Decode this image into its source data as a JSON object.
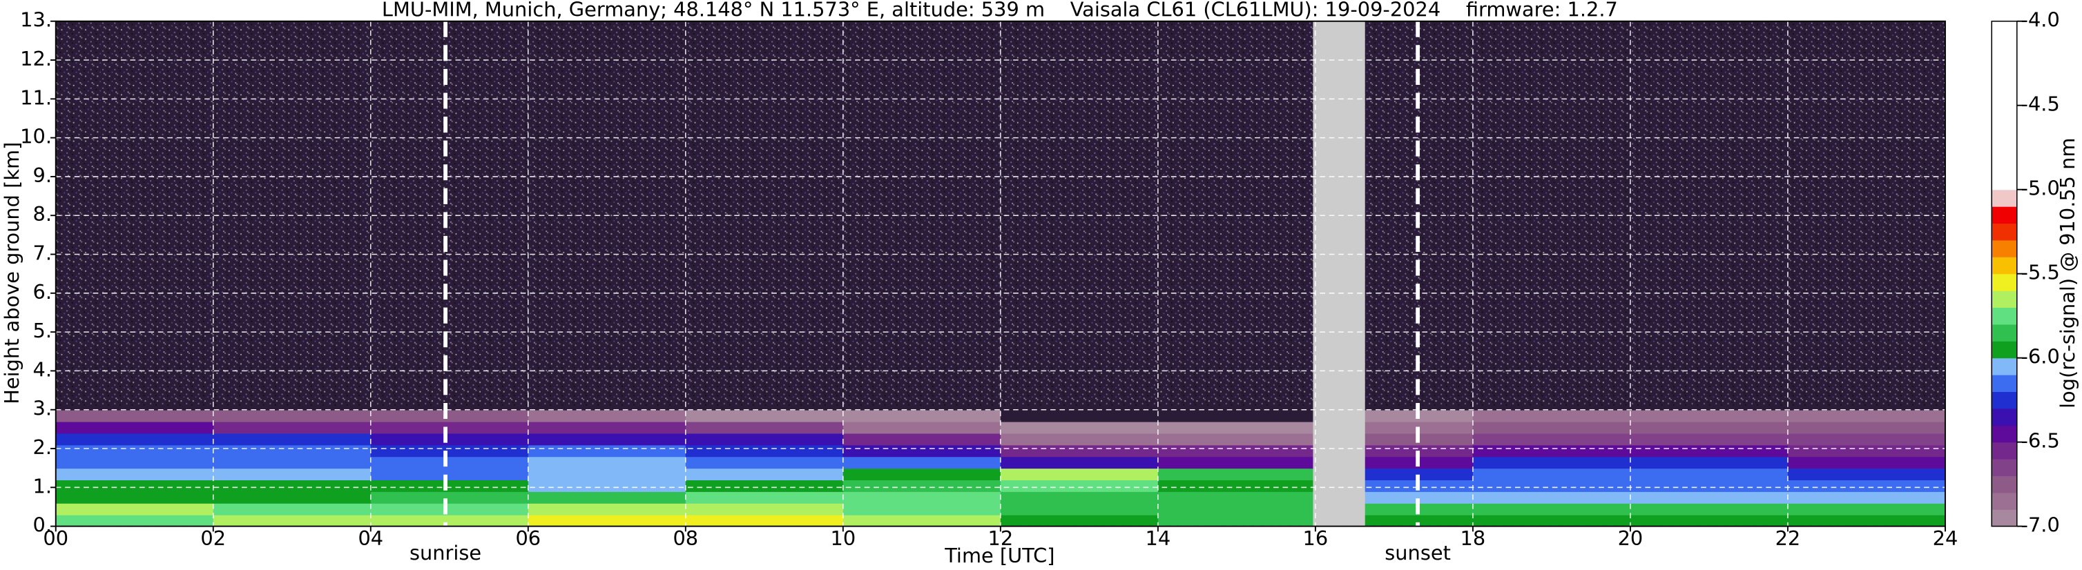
{
  "chart_data": {
    "type": "heatmap",
    "title": "LMU-MIM, Munich, Germany; 48.148° N 11.573° E, altitude: 539 m    Vaisala CL61 (CL61LMU): 19-09-2024    firmware: 1.2.7",
    "xlabel": "Time [UTC]",
    "ylabel": "Height above ground [km]",
    "xlim": [
      0,
      24
    ],
    "ylim": [
      0,
      13
    ],
    "xticks": [
      {
        "value": 0,
        "label": "00"
      },
      {
        "value": 2,
        "label": "02"
      },
      {
        "value": 4,
        "label": "04"
      },
      {
        "value": 6,
        "label": "06"
      },
      {
        "value": 8,
        "label": "08"
      },
      10,
      12,
      14,
      16,
      18,
      20,
      22,
      24
    ],
    "yticks": [
      {
        "value": 0,
        "label": "0."
      },
      {
        "value": 1,
        "label": "1."
      },
      {
        "value": 2,
        "label": "2."
      },
      {
        "value": 3,
        "label": "3."
      },
      {
        "value": 4,
        "label": "4."
      },
      {
        "value": 5,
        "label": "5."
      },
      {
        "value": 6,
        "label": "6."
      },
      {
        "value": 7,
        "label": "7."
      },
      {
        "value": 8,
        "label": "8."
      },
      {
        "value": 9,
        "label": "9."
      },
      {
        "value": 10,
        "label": "10."
      },
      {
        "value": 11,
        "label": "11."
      },
      {
        "value": 12,
        "label": "12."
      },
      {
        "value": 13,
        "label": "13."
      }
    ],
    "grid": true,
    "x_bins": [
      0,
      2,
      4,
      6,
      8,
      10,
      12,
      14,
      16,
      18,
      20,
      22,
      24
    ],
    "y_bins": [
      0,
      0.3,
      0.6,
      0.9,
      1.2,
      1.5,
      1.8,
      2.1,
      2.4,
      2.7,
      3,
      5,
      13
    ],
    "z": [
      [
        -5.75,
        -5.65,
        -5.7,
        -5.6,
        -5.6,
        -5.7,
        -5.95,
        -5.9,
        -5.95,
        -5.95,
        -5.95,
        -5.95
      ],
      [
        -5.65,
        -5.75,
        -5.8,
        -5.65,
        -5.7,
        -5.75,
        -5.85,
        -5.85,
        -5.85,
        -5.85,
        -5.85,
        -5.85
      ],
      [
        -5.95,
        -5.95,
        -5.9,
        -5.85,
        -5.75,
        -5.8,
        -5.85,
        -5.9,
        -6.05,
        -6.05,
        -6.05,
        -6.05
      ],
      [
        -5.95,
        -5.95,
        -5.95,
        -6.05,
        -5.95,
        -5.85,
        -5.8,
        -5.95,
        -6.15,
        -6.15,
        -6.15,
        -6.15
      ],
      [
        -6.05,
        -6.05,
        -6.15,
        -6.05,
        -6.05,
        -5.95,
        -5.7,
        -5.9,
        -6.25,
        -6.15,
        -6.15,
        -6.25
      ],
      [
        -6.15,
        -6.15,
        -6.15,
        -6.05,
        -6.15,
        -6.15,
        -6.35,
        -6.45,
        -6.45,
        -6.25,
        -6.25,
        -6.45
      ],
      [
        -6.15,
        -6.15,
        -6.25,
        -6.15,
        -6.25,
        -6.35,
        -6.55,
        -6.55,
        -6.55,
        -6.45,
        -6.45,
        -6.55
      ],
      [
        -6.25,
        -6.25,
        -6.35,
        -6.35,
        -6.35,
        -6.55,
        -6.85,
        -6.85,
        -6.75,
        -6.65,
        -6.65,
        -6.65
      ],
      [
        -6.45,
        -6.55,
        -6.55,
        -6.55,
        -6.65,
        -6.85,
        -6.95,
        -6.95,
        -6.85,
        -6.75,
        -6.75,
        -6.75
      ],
      [
        -6.75,
        -6.75,
        -6.75,
        -6.85,
        -6.95,
        -6.95,
        -7.1,
        -7.1,
        -6.95,
        -6.9,
        -6.85,
        -6.85
      ],
      [
        -7.1,
        -7.1,
        -7.1,
        -7.1,
        -7.1,
        -7.1,
        -7.1,
        -7.1,
        -7.1,
        -7.1,
        -7.1,
        -7.1
      ],
      [
        -7.2,
        -7.2,
        -7.2,
        -7.2,
        -7.2,
        -7.2,
        -7.2,
        -7.2,
        -7.2,
        -7.2,
        -7.2,
        -7.2
      ]
    ],
    "gap": {
      "x": [
        15.97,
        16.63
      ],
      "color": "#cccccc"
    },
    "events": [
      {
        "label": "sunrise",
        "x": 4.95
      },
      {
        "label": "sunset",
        "x": 17.3
      }
    ],
    "colorbar": {
      "label": "log(rc-signal) @ 910.55 nm",
      "lim": [
        -7,
        -4
      ],
      "ticks": [
        {
          "value": -4,
          "label": "-4.0"
        },
        -4.5,
        {
          "value": -5,
          "label": "-5.0"
        },
        -5.5,
        {
          "value": -6,
          "label": "-6.0"
        },
        -6.5,
        {
          "value": -7,
          "label": "-7.0"
        }
      ],
      "bounds": [
        -7,
        -6.9,
        -6.8,
        -6.7,
        -6.6,
        -6.5,
        -6.4,
        -6.3,
        -6.2,
        -6.1,
        -6,
        -5.9,
        -5.8,
        -5.7,
        -5.6,
        -5.5,
        -5.4,
        -5.3,
        -5.2,
        -5.1,
        -5,
        -4
      ],
      "colors": [
        "#a8889e",
        "#9c7092",
        "#8e5a88",
        "#82428a",
        "#74288c",
        "#5e0a9a",
        "#3a10b0",
        "#2030d0",
        "#3c6cf0",
        "#80b8f8",
        "#10a020",
        "#30c050",
        "#60e080",
        "#b0f060",
        "#f0f020",
        "#f8c000",
        "#f88000",
        "#f03000",
        "#f00000",
        "#f0c8c8",
        "#ffffff"
      ],
      "under_color": "#2a1c36"
    }
  }
}
